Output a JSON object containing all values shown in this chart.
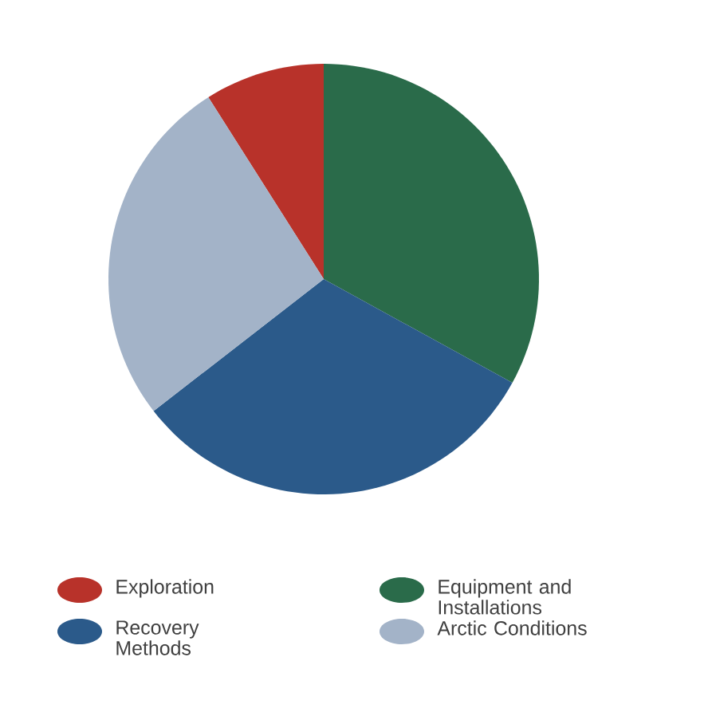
{
  "chart_data": {
    "type": "pie",
    "categories": [
      "Exploration",
      "Equipment and Installations",
      "Recovery Methods",
      "Arctic Conditions"
    ],
    "values": [
      9,
      33,
      31.5,
      26.5
    ],
    "colors": [
      "#b8322a",
      "#2a6b4a",
      "#2b5a8a",
      "#a3b3c8"
    ],
    "legend": "bottom"
  }
}
